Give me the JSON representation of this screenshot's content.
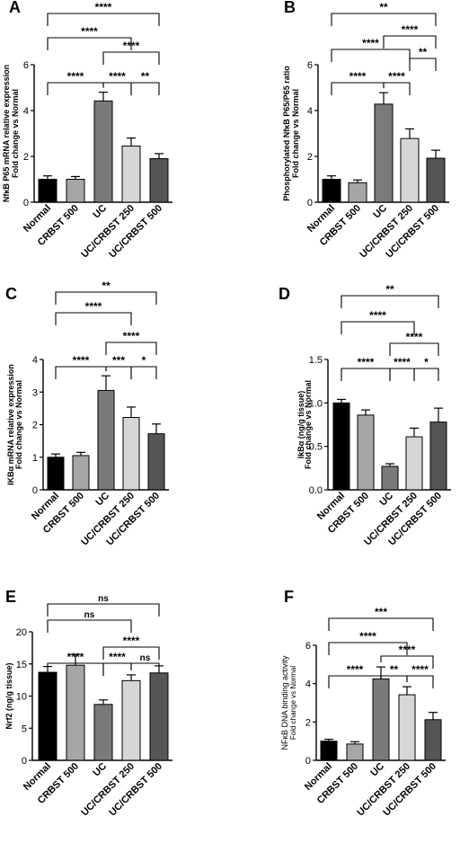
{
  "chart_data": [
    {
      "panel": "A",
      "type": "bar",
      "ylabel": [
        "NfκB P65 mRNA relative expression",
        "Fold change vs Normal"
      ],
      "ylim": [
        0,
        6
      ],
      "yticks": [
        0,
        2,
        4,
        6
      ],
      "categories": [
        "Normal",
        "CRBST 500",
        "UC",
        "UC/CRBST 250",
        "UC/CRBST 500"
      ],
      "values": [
        1.0,
        1.0,
        4.42,
        2.45,
        1.9
      ],
      "errors": [
        0.15,
        0.12,
        0.38,
        0.35,
        0.22
      ],
      "colors": [
        "#000000",
        "#a6a6a6",
        "#7a7a7a",
        "#d6d6d6",
        "#555555"
      ],
      "brackets": [
        {
          "from": 0,
          "to": 2,
          "label": "****"
        },
        {
          "from": 2,
          "to": 3,
          "label": "****"
        },
        {
          "from": 3,
          "to": 4,
          "label": "**"
        },
        {
          "from": 2,
          "to": 4,
          "label": "****"
        },
        {
          "from": 0,
          "to": 3,
          "label": "****"
        },
        {
          "from": 0,
          "to": 4,
          "label": "****"
        }
      ]
    },
    {
      "panel": "B",
      "type": "bar",
      "ylabel": [
        "Phosphorylated NfκB P65/P65 ratio",
        "Fold change vs Normal"
      ],
      "ylim": [
        0,
        6
      ],
      "yticks": [
        0,
        2,
        4,
        6
      ],
      "categories": [
        "Normal",
        "CRBST 500",
        "UC",
        "UC/CRBST 250",
        "UC/CRBST 500"
      ],
      "values": [
        1.0,
        0.85,
        4.28,
        2.78,
        1.92
      ],
      "errors": [
        0.15,
        0.12,
        0.5,
        0.42,
        0.35
      ],
      "colors": [
        "#000000",
        "#a6a6a6",
        "#7a7a7a",
        "#d6d6d6",
        "#555555"
      ],
      "brackets": [
        {
          "from": 0,
          "to": 2,
          "label": "****"
        },
        {
          "from": 2,
          "to": 3,
          "label": "****"
        },
        {
          "from": 3,
          "to": 4,
          "label": "**"
        },
        {
          "from": 0,
          "to": 3,
          "label": "****"
        },
        {
          "from": 2,
          "to": 4,
          "label": "****"
        },
        {
          "from": 0,
          "to": 4,
          "label": "**"
        }
      ]
    },
    {
      "panel": "C",
      "type": "bar",
      "ylabel": [
        "IKBα mRNA relative expression",
        "Fold change vs Normal"
      ],
      "ylim": [
        0,
        4
      ],
      "yticks": [
        0,
        1,
        2,
        3,
        4
      ],
      "categories": [
        "Normal",
        "CRBST 500",
        "UC",
        "UC/CRBST 250",
        "UC/CRBST 500"
      ],
      "values": [
        1.0,
        1.05,
        3.05,
        2.22,
        1.72
      ],
      "errors": [
        0.1,
        0.1,
        0.45,
        0.32,
        0.3
      ],
      "colors": [
        "#000000",
        "#a6a6a6",
        "#7a7a7a",
        "#d6d6d6",
        "#555555"
      ],
      "brackets": [
        {
          "from": 0,
          "to": 2,
          "label": "****"
        },
        {
          "from": 2,
          "to": 3,
          "label": "***"
        },
        {
          "from": 3,
          "to": 4,
          "label": "*"
        },
        {
          "from": 2,
          "to": 4,
          "label": "****"
        },
        {
          "from": 0,
          "to": 3,
          "label": "****"
        },
        {
          "from": 0,
          "to": 4,
          "label": "**"
        }
      ]
    },
    {
      "panel": "D",
      "type": "bar",
      "ylabel": [
        "IkBα (ng/g tissue)",
        "Fold change vs Normal"
      ],
      "ylim": [
        0,
        1.5
      ],
      "yticks": [
        0.0,
        0.5,
        1.0,
        1.5
      ],
      "categories": [
        "Normal",
        "CRBST 500",
        "UC",
        "UC/CRBST 250",
        "UC/CRBST 500"
      ],
      "values": [
        1.0,
        0.86,
        0.27,
        0.61,
        0.78
      ],
      "errors": [
        0.04,
        0.06,
        0.03,
        0.1,
        0.16
      ],
      "colors": [
        "#000000",
        "#a6a6a6",
        "#7a7a7a",
        "#d6d6d6",
        "#555555"
      ],
      "brackets": [
        {
          "from": 0,
          "to": 2,
          "label": "****"
        },
        {
          "from": 2,
          "to": 3,
          "label": "****"
        },
        {
          "from": 3,
          "to": 4,
          "label": "*"
        },
        {
          "from": 2,
          "to": 4,
          "label": "****"
        },
        {
          "from": 0,
          "to": 3,
          "label": "****"
        },
        {
          "from": 0,
          "to": 4,
          "label": "**"
        }
      ]
    },
    {
      "panel": "E",
      "type": "bar",
      "ylabel": [
        "Nrf2 (ng/g tissue)"
      ],
      "ylim": [
        0,
        20
      ],
      "yticks": [
        0,
        5,
        10,
        15,
        20
      ],
      "categories": [
        "Normal",
        "CRBST 500",
        "UC",
        "UC/CRBST 250",
        "UC/CRBST 500"
      ],
      "values": [
        13.7,
        14.8,
        8.7,
        12.4,
        13.6
      ],
      "errors": [
        0.9,
        1.7,
        0.7,
        0.9,
        1.1
      ],
      "colors": [
        "#000000",
        "#a6a6a6",
        "#7a7a7a",
        "#d6d6d6",
        "#555555"
      ],
      "brackets": [
        {
          "from": 0,
          "to": 2,
          "label": "****"
        },
        {
          "from": 2,
          "to": 3,
          "label": "****"
        },
        {
          "from": 3,
          "to": 4,
          "label": "ns"
        },
        {
          "from": 2,
          "to": 4,
          "label": "****"
        },
        {
          "from": 0,
          "to": 3,
          "label": "ns"
        },
        {
          "from": 0,
          "to": 4,
          "label": "ns"
        }
      ]
    },
    {
      "panel": "F",
      "type": "bar",
      "ylabel": [
        "NFκB DNA binding activity",
        "Fold change vs Normal"
      ],
      "ylim": [
        0,
        6
      ],
      "yticks": [
        0,
        2,
        4,
        6
      ],
      "categories": [
        "Normal",
        "CRBST 500",
        "UC",
        "UC/CRBST 250",
        "UC/CRBST 500"
      ],
      "values": [
        1.0,
        0.85,
        4.25,
        3.42,
        2.12
      ],
      "errors": [
        0.1,
        0.12,
        0.62,
        0.42,
        0.38
      ],
      "colors": [
        "#000000",
        "#a6a6a6",
        "#7a7a7a",
        "#d6d6d6",
        "#555555"
      ],
      "brackets": [
        {
          "from": 0,
          "to": 2,
          "label": "****"
        },
        {
          "from": 2,
          "to": 3,
          "label": "**"
        },
        {
          "from": 3,
          "to": 4,
          "label": "****"
        },
        {
          "from": 2,
          "to": 4,
          "label": "****"
        },
        {
          "from": 0,
          "to": 3,
          "label": "****"
        },
        {
          "from": 0,
          "to": 4,
          "label": "***"
        }
      ]
    }
  ]
}
